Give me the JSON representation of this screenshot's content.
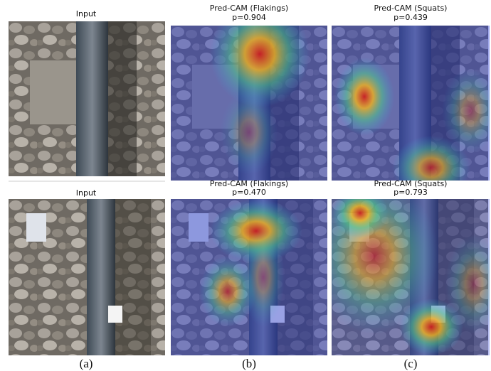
{
  "columns": [
    {
      "caption": "(a)",
      "cells": [
        {
          "title": "Input"
        },
        {
          "title": "Input"
        }
      ]
    },
    {
      "caption": "(b)",
      "cells": [
        {
          "title": "Pred-CAM (Flakings)",
          "score": "p=0.904"
        },
        {
          "title": "Pred-CAM (Flakings)",
          "score": "p=0.470"
        }
      ]
    },
    {
      "caption": "(c)",
      "cells": [
        {
          "title": "Pred-CAM (Squats)",
          "score": "p=0.439"
        },
        {
          "title": "Pred-CAM (Squats)",
          "score": "p=0.793"
        }
      ]
    }
  ]
}
